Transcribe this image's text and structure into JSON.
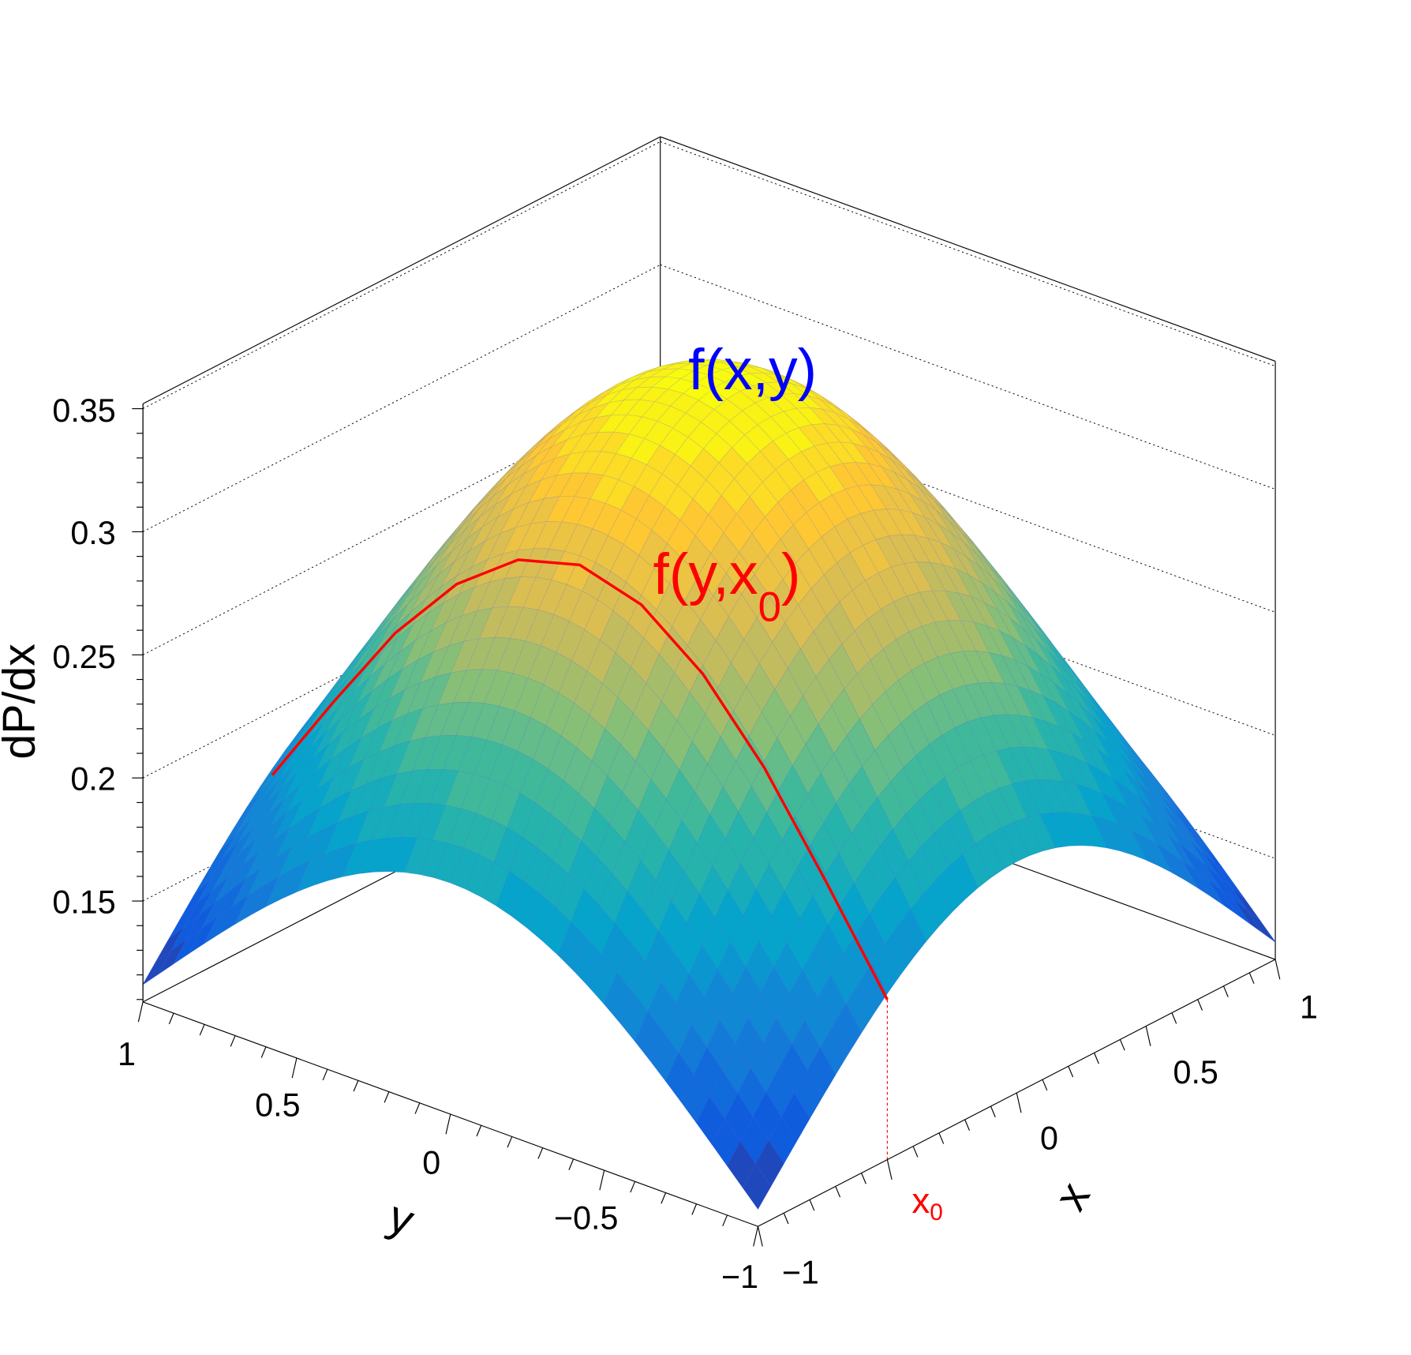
{
  "chart_data": {
    "type": "surface",
    "x_axis": {
      "title": "x",
      "range": [
        -1,
        1
      ],
      "ticks": [
        -1,
        0,
        0.5,
        1
      ],
      "tick_labels": [
        "−1",
        "0",
        "0.5",
        "1"
      ]
    },
    "y_axis": {
      "title": "y",
      "range": [
        -1,
        1
      ],
      "ticks": [
        1,
        0.5,
        0,
        -0.5,
        -1
      ],
      "tick_labels": [
        "1",
        "0.5",
        "0",
        "−0.5",
        "−1"
      ]
    },
    "z_axis": {
      "title": "dP/dx",
      "range": [
        0.109,
        0.352
      ],
      "ticks": [
        0.15,
        0.2,
        0.25,
        0.3,
        0.35
      ],
      "tick_labels": [
        "0.15",
        "0.2",
        "0.25",
        "0.3",
        "0.35"
      ]
    },
    "surface_samples": {
      "x": [
        -1,
        -0.5,
        0,
        0.5,
        1
      ],
      "y": [
        -1,
        -0.5,
        0,
        0.5,
        1
      ],
      "z_center": 0.355,
      "z_edge_mid": 0.203,
      "z_corner": 0.116
    },
    "curve": {
      "label": "f(y,x",
      "label_sub": "0",
      "label_close": ")",
      "x0": -0.5,
      "y": [
        1,
        0.8,
        0.6,
        0.4,
        0.2,
        0,
        -0.2,
        -0.4,
        -0.6,
        -0.8,
        -1
      ],
      "z": [
        0.174,
        0.213,
        0.25,
        0.279,
        0.298,
        0.305,
        0.298,
        0.279,
        0.25,
        0.213,
        0.174
      ],
      "color": "#ff0000"
    },
    "surface_label": {
      "text": "f(x,y)",
      "color": "#0000ff"
    },
    "x0_marker": {
      "text": "x",
      "sub": "0",
      "color": "#ff0000"
    },
    "palette": [
      "#35298b",
      "#0f5cdd",
      "#1481d6",
      "#06a4ca",
      "#2eb7a4",
      "#87bf77",
      "#d1bb59",
      "#fec832",
      "#f9fb0e"
    ],
    "grid": true
  }
}
